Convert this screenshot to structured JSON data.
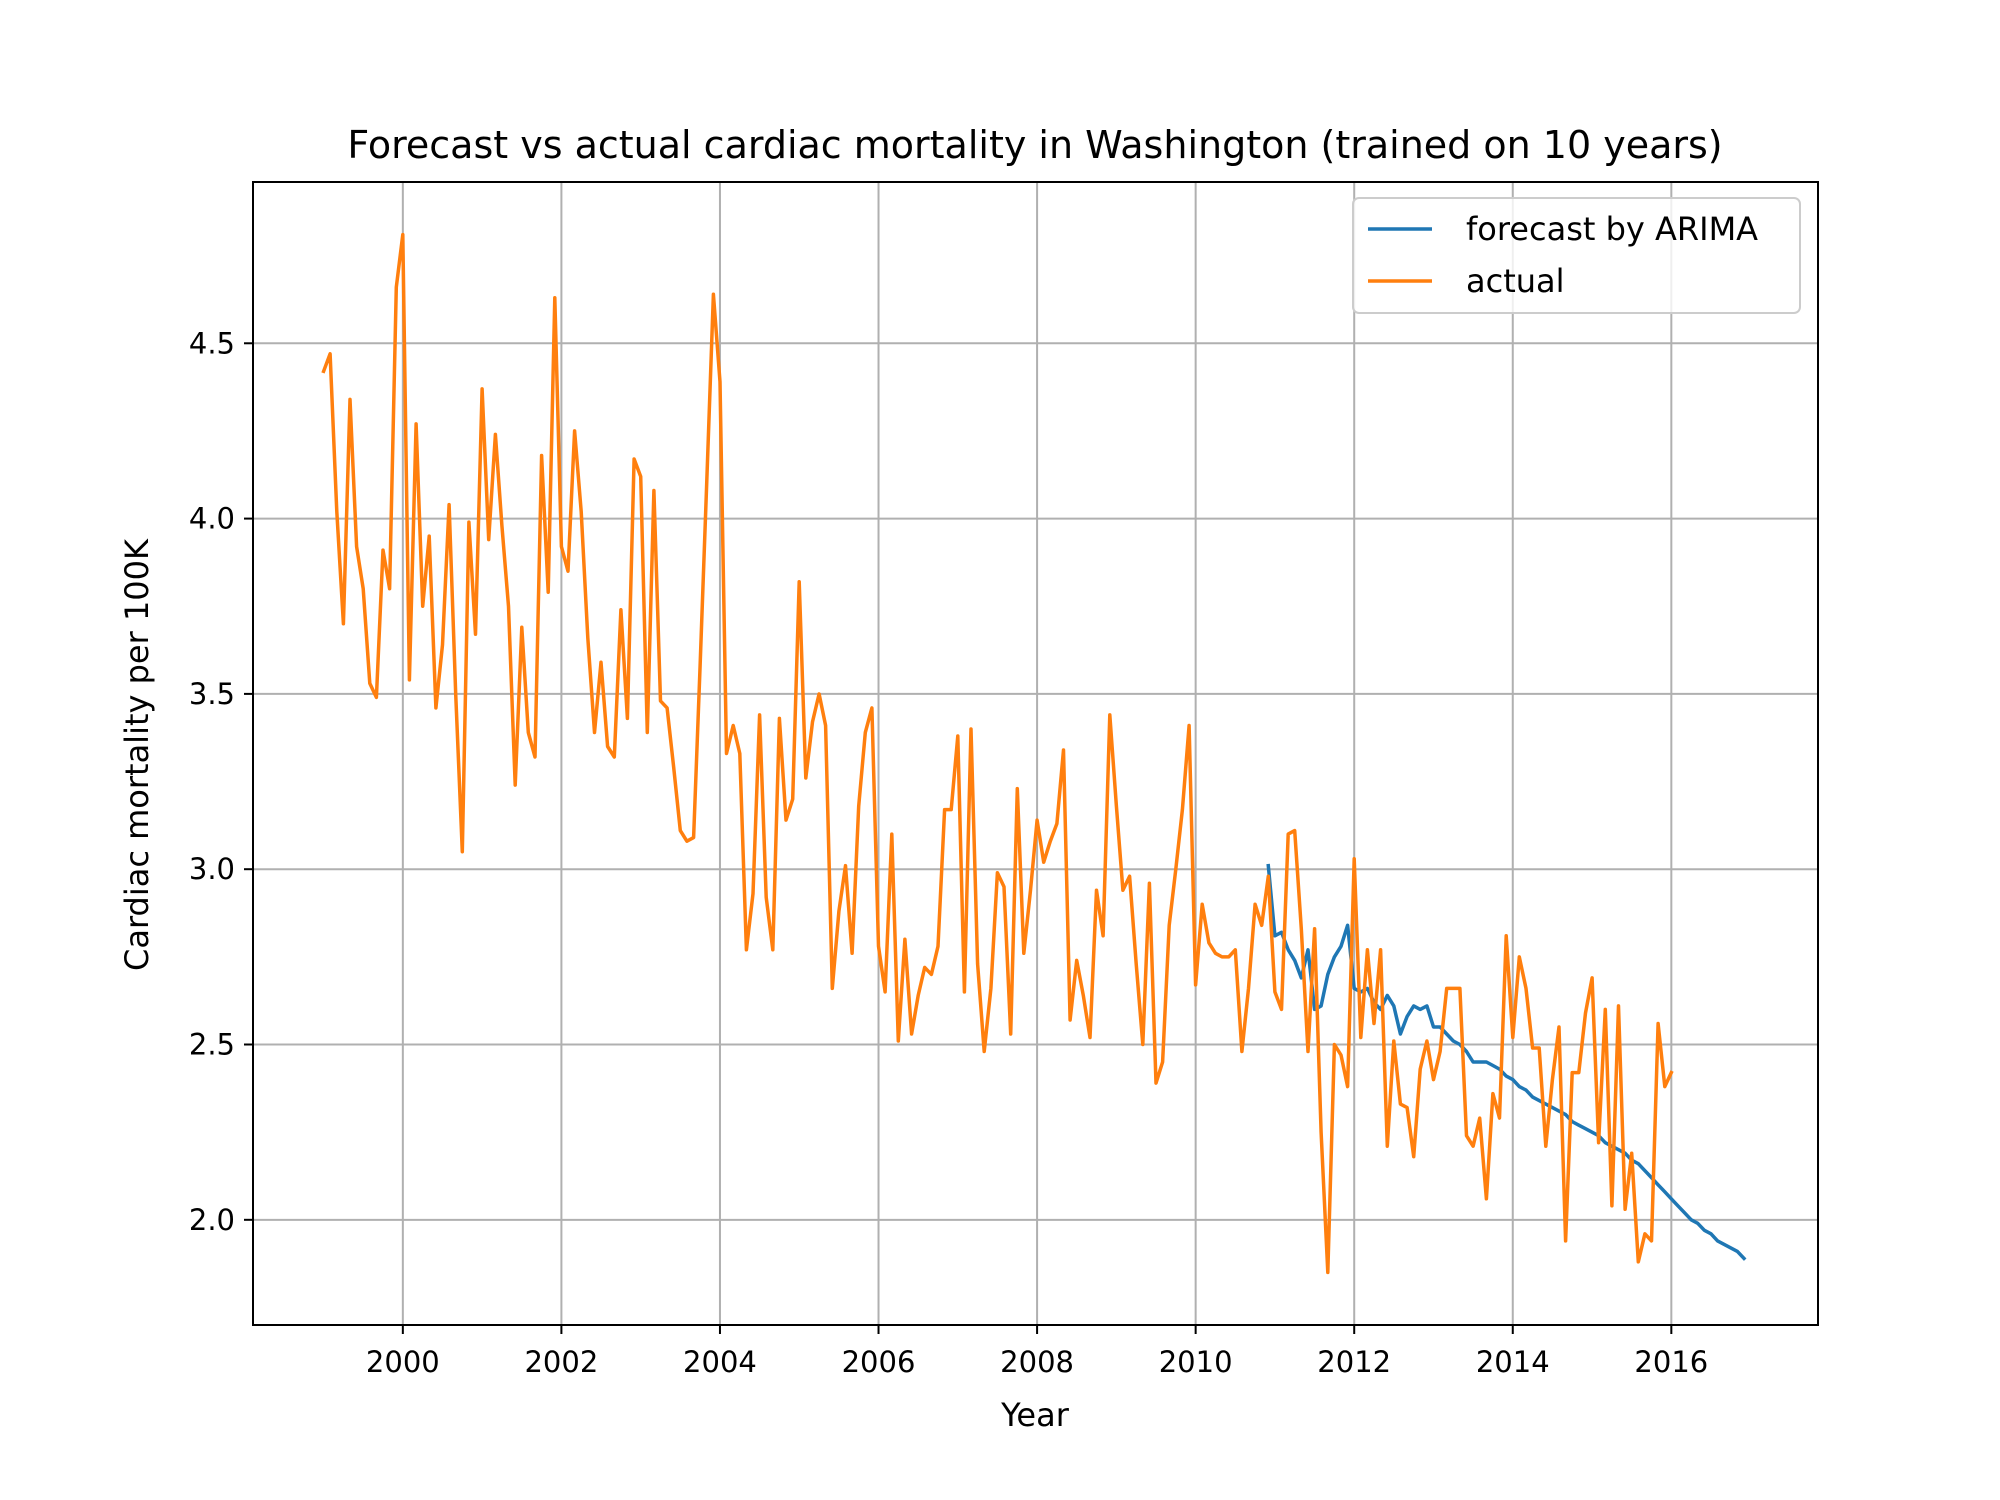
{
  "chart_data": {
    "type": "line",
    "title": "Forecast vs actual cardiac mortality in Washington (trained on 10 years)",
    "xlabel": "Year",
    "ylabel": "Cardiac mortality per 100K",
    "xlim": [
      1998.11,
      2017.85
    ],
    "ylim": [
      1.7,
      4.96
    ],
    "x_ticks": [
      2000,
      2002,
      2004,
      2006,
      2008,
      2010,
      2012,
      2014,
      2016
    ],
    "x_tick_labels": [
      "2000",
      "2002",
      "2004",
      "2006",
      "2008",
      "2010",
      "2012",
      "2014",
      "2016"
    ],
    "y_ticks": [
      2.0,
      2.5,
      3.0,
      3.5,
      4.0,
      4.5
    ],
    "y_tick_labels": [
      "2.0",
      "2.5",
      "3.0",
      "3.5",
      "4.0",
      "4.5"
    ],
    "grid": true,
    "legend_position": "top-right",
    "colors": {
      "forecast": "#1f77b4",
      "actual": "#ff7f0e",
      "grid": "#b0b0b0",
      "axes": "#000000",
      "legend_border": "#cccccc"
    },
    "series": [
      {
        "name": "forecast by ARIMA",
        "color": "#1f77b4",
        "points": [
          [
            2010.917,
            3.01
          ],
          [
            2011.0,
            2.81
          ],
          [
            2011.083,
            2.82
          ],
          [
            2011.167,
            2.77
          ],
          [
            2011.25,
            2.74
          ],
          [
            2011.333,
            2.69
          ],
          [
            2011.417,
            2.77
          ],
          [
            2011.5,
            2.6
          ],
          [
            2011.583,
            2.61
          ],
          [
            2011.667,
            2.7
          ],
          [
            2011.75,
            2.75
          ],
          [
            2011.833,
            2.78
          ],
          [
            2011.917,
            2.84
          ],
          [
            2012.0,
            2.66
          ],
          [
            2012.083,
            2.65
          ],
          [
            2012.167,
            2.66
          ],
          [
            2012.25,
            2.62
          ],
          [
            2012.333,
            2.6
          ],
          [
            2012.417,
            2.64
          ],
          [
            2012.5,
            2.61
          ],
          [
            2012.583,
            2.53
          ],
          [
            2012.667,
            2.58
          ],
          [
            2012.75,
            2.61
          ],
          [
            2012.833,
            2.6
          ],
          [
            2012.917,
            2.61
          ],
          [
            2013.0,
            2.55
          ],
          [
            2013.083,
            2.55
          ],
          [
            2013.167,
            2.53
          ],
          [
            2013.25,
            2.51
          ],
          [
            2013.333,
            2.5
          ],
          [
            2013.417,
            2.48
          ],
          [
            2013.5,
            2.45
          ],
          [
            2013.583,
            2.45
          ],
          [
            2013.667,
            2.45
          ],
          [
            2013.75,
            2.44
          ],
          [
            2013.833,
            2.43
          ],
          [
            2013.917,
            2.41
          ],
          [
            2014.0,
            2.4
          ],
          [
            2014.083,
            2.38
          ],
          [
            2014.167,
            2.37
          ],
          [
            2014.25,
            2.35
          ],
          [
            2014.333,
            2.34
          ],
          [
            2014.417,
            2.33
          ],
          [
            2014.5,
            2.32
          ],
          [
            2014.583,
            2.31
          ],
          [
            2014.667,
            2.3
          ],
          [
            2014.75,
            2.28
          ],
          [
            2014.833,
            2.27
          ],
          [
            2014.917,
            2.26
          ],
          [
            2015.0,
            2.25
          ],
          [
            2015.083,
            2.24
          ],
          [
            2015.167,
            2.22
          ],
          [
            2015.25,
            2.21
          ],
          [
            2015.333,
            2.2
          ],
          [
            2015.417,
            2.19
          ],
          [
            2015.5,
            2.17
          ],
          [
            2015.583,
            2.16
          ],
          [
            2015.667,
            2.14
          ],
          [
            2015.75,
            2.12
          ],
          [
            2015.833,
            2.1
          ],
          [
            2015.917,
            2.08
          ],
          [
            2016.0,
            2.06
          ],
          [
            2016.083,
            2.04
          ],
          [
            2016.167,
            2.02
          ],
          [
            2016.25,
            2.0
          ],
          [
            2016.333,
            1.99
          ],
          [
            2016.417,
            1.97
          ],
          [
            2016.5,
            1.96
          ],
          [
            2016.583,
            1.94
          ],
          [
            2016.667,
            1.93
          ],
          [
            2016.75,
            1.92
          ],
          [
            2016.833,
            1.91
          ],
          [
            2016.917,
            1.89
          ]
        ]
      },
      {
        "name": "actual",
        "color": "#ff7f0e",
        "points": [
          [
            1999.0,
            4.42
          ],
          [
            1999.083,
            4.47
          ],
          [
            1999.167,
            4.02
          ],
          [
            1999.25,
            3.7
          ],
          [
            1999.333,
            4.34
          ],
          [
            1999.417,
            3.92
          ],
          [
            1999.5,
            3.8
          ],
          [
            1999.583,
            3.53
          ],
          [
            1999.667,
            3.49
          ],
          [
            1999.75,
            3.91
          ],
          [
            1999.833,
            3.8
          ],
          [
            1999.917,
            4.66
          ],
          [
            2000.0,
            4.81
          ],
          [
            2000.083,
            3.54
          ],
          [
            2000.167,
            4.27
          ],
          [
            2000.25,
            3.75
          ],
          [
            2000.333,
            3.95
          ],
          [
            2000.417,
            3.46
          ],
          [
            2000.5,
            3.64
          ],
          [
            2000.583,
            4.04
          ],
          [
            2000.667,
            3.5
          ],
          [
            2000.75,
            3.05
          ],
          [
            2000.833,
            3.99
          ],
          [
            2000.917,
            3.67
          ],
          [
            2001.0,
            4.37
          ],
          [
            2001.083,
            3.94
          ],
          [
            2001.167,
            4.24
          ],
          [
            2001.25,
            3.98
          ],
          [
            2001.333,
            3.75
          ],
          [
            2001.417,
            3.24
          ],
          [
            2001.5,
            3.69
          ],
          [
            2001.583,
            3.39
          ],
          [
            2001.667,
            3.32
          ],
          [
            2001.75,
            4.18
          ],
          [
            2001.833,
            3.79
          ],
          [
            2001.917,
            4.63
          ],
          [
            2002.0,
            3.92
          ],
          [
            2002.083,
            3.85
          ],
          [
            2002.167,
            4.25
          ],
          [
            2002.25,
            4.02
          ],
          [
            2002.333,
            3.66
          ],
          [
            2002.417,
            3.39
          ],
          [
            2002.5,
            3.59
          ],
          [
            2002.583,
            3.35
          ],
          [
            2002.667,
            3.32
          ],
          [
            2002.75,
            3.74
          ],
          [
            2002.833,
            3.43
          ],
          [
            2002.917,
            4.17
          ],
          [
            2003.0,
            4.12
          ],
          [
            2003.083,
            3.39
          ],
          [
            2003.167,
            4.08
          ],
          [
            2003.25,
            3.48
          ],
          [
            2003.333,
            3.46
          ],
          [
            2003.417,
            3.29
          ],
          [
            2003.5,
            3.11
          ],
          [
            2003.583,
            3.08
          ],
          [
            2003.667,
            3.09
          ],
          [
            2003.75,
            3.58
          ],
          [
            2003.833,
            4.1
          ],
          [
            2003.917,
            4.64
          ],
          [
            2004.0,
            4.39
          ],
          [
            2004.083,
            3.33
          ],
          [
            2004.167,
            3.41
          ],
          [
            2004.25,
            3.33
          ],
          [
            2004.333,
            2.77
          ],
          [
            2004.417,
            2.93
          ],
          [
            2004.5,
            3.44
          ],
          [
            2004.583,
            2.92
          ],
          [
            2004.667,
            2.77
          ],
          [
            2004.75,
            3.43
          ],
          [
            2004.833,
            3.14
          ],
          [
            2004.917,
            3.2
          ],
          [
            2005.0,
            3.82
          ],
          [
            2005.083,
            3.26
          ],
          [
            2005.167,
            3.42
          ],
          [
            2005.25,
            3.5
          ],
          [
            2005.333,
            3.41
          ],
          [
            2005.417,
            2.66
          ],
          [
            2005.5,
            2.88
          ],
          [
            2005.583,
            3.01
          ],
          [
            2005.667,
            2.76
          ],
          [
            2005.75,
            3.18
          ],
          [
            2005.833,
            3.39
          ],
          [
            2005.917,
            3.46
          ],
          [
            2006.0,
            2.78
          ],
          [
            2006.083,
            2.65
          ],
          [
            2006.167,
            3.1
          ],
          [
            2006.25,
            2.51
          ],
          [
            2006.333,
            2.8
          ],
          [
            2006.417,
            2.53
          ],
          [
            2006.5,
            2.64
          ],
          [
            2006.583,
            2.72
          ],
          [
            2006.667,
            2.7
          ],
          [
            2006.75,
            2.78
          ],
          [
            2006.833,
            3.17
          ],
          [
            2006.917,
            3.17
          ],
          [
            2007.0,
            3.38
          ],
          [
            2007.083,
            2.65
          ],
          [
            2007.167,
            3.4
          ],
          [
            2007.25,
            2.73
          ],
          [
            2007.333,
            2.48
          ],
          [
            2007.417,
            2.66
          ],
          [
            2007.5,
            2.99
          ],
          [
            2007.583,
            2.95
          ],
          [
            2007.667,
            2.53
          ],
          [
            2007.75,
            3.23
          ],
          [
            2007.833,
            2.76
          ],
          [
            2007.917,
            2.94
          ],
          [
            2008.0,
            3.14
          ],
          [
            2008.083,
            3.02
          ],
          [
            2008.167,
            3.08
          ],
          [
            2008.25,
            3.13
          ],
          [
            2008.333,
            3.34
          ],
          [
            2008.417,
            2.57
          ],
          [
            2008.5,
            2.74
          ],
          [
            2008.583,
            2.64
          ],
          [
            2008.667,
            2.52
          ],
          [
            2008.75,
            2.94
          ],
          [
            2008.833,
            2.81
          ],
          [
            2008.917,
            3.44
          ],
          [
            2009.0,
            3.18
          ],
          [
            2009.083,
            2.94
          ],
          [
            2009.167,
            2.98
          ],
          [
            2009.25,
            2.73
          ],
          [
            2009.333,
            2.5
          ],
          [
            2009.417,
            2.96
          ],
          [
            2009.5,
            2.39
          ],
          [
            2009.583,
            2.45
          ],
          [
            2009.667,
            2.84
          ],
          [
            2009.75,
            3.0
          ],
          [
            2009.833,
            3.17
          ],
          [
            2009.917,
            3.41
          ],
          [
            2010.0,
            2.67
          ],
          [
            2010.083,
            2.9
          ],
          [
            2010.167,
            2.79
          ],
          [
            2010.25,
            2.76
          ],
          [
            2010.333,
            2.75
          ],
          [
            2010.417,
            2.75
          ],
          [
            2010.5,
            2.77
          ],
          [
            2010.583,
            2.48
          ],
          [
            2010.667,
            2.66
          ],
          [
            2010.75,
            2.9
          ],
          [
            2010.833,
            2.84
          ],
          [
            2010.917,
            2.98
          ],
          [
            2011.0,
            2.65
          ],
          [
            2011.083,
            2.6
          ],
          [
            2011.167,
            3.1
          ],
          [
            2011.25,
            3.11
          ],
          [
            2011.333,
            2.83
          ],
          [
            2011.417,
            2.48
          ],
          [
            2011.5,
            2.83
          ],
          [
            2011.583,
            2.25
          ],
          [
            2011.667,
            1.85
          ],
          [
            2011.75,
            2.5
          ],
          [
            2011.833,
            2.47
          ],
          [
            2011.917,
            2.38
          ],
          [
            2012.0,
            3.03
          ],
          [
            2012.083,
            2.52
          ],
          [
            2012.167,
            2.77
          ],
          [
            2012.25,
            2.56
          ],
          [
            2012.333,
            2.77
          ],
          [
            2012.417,
            2.21
          ],
          [
            2012.5,
            2.51
          ],
          [
            2012.583,
            2.33
          ],
          [
            2012.667,
            2.32
          ],
          [
            2012.75,
            2.18
          ],
          [
            2012.833,
            2.43
          ],
          [
            2012.917,
            2.51
          ],
          [
            2013.0,
            2.4
          ],
          [
            2013.083,
            2.48
          ],
          [
            2013.167,
            2.66
          ],
          [
            2013.25,
            2.66
          ],
          [
            2013.333,
            2.66
          ],
          [
            2013.417,
            2.24
          ],
          [
            2013.5,
            2.21
          ],
          [
            2013.583,
            2.29
          ],
          [
            2013.667,
            2.06
          ],
          [
            2013.75,
            2.36
          ],
          [
            2013.833,
            2.29
          ],
          [
            2013.917,
            2.81
          ],
          [
            2014.0,
            2.52
          ],
          [
            2014.083,
            2.75
          ],
          [
            2014.167,
            2.66
          ],
          [
            2014.25,
            2.49
          ],
          [
            2014.333,
            2.49
          ],
          [
            2014.417,
            2.21
          ],
          [
            2014.5,
            2.4
          ],
          [
            2014.583,
            2.55
          ],
          [
            2014.667,
            1.94
          ],
          [
            2014.75,
            2.42
          ],
          [
            2014.833,
            2.42
          ],
          [
            2014.917,
            2.59
          ],
          [
            2015.0,
            2.69
          ],
          [
            2015.083,
            2.22
          ],
          [
            2015.167,
            2.6
          ],
          [
            2015.25,
            2.04
          ],
          [
            2015.333,
            2.61
          ],
          [
            2015.417,
            2.03
          ],
          [
            2015.5,
            2.19
          ],
          [
            2015.583,
            1.88
          ],
          [
            2015.667,
            1.96
          ],
          [
            2015.75,
            1.94
          ],
          [
            2015.833,
            2.56
          ],
          [
            2015.917,
            2.38
          ],
          [
            2016.0,
            2.42
          ]
        ]
      }
    ]
  }
}
